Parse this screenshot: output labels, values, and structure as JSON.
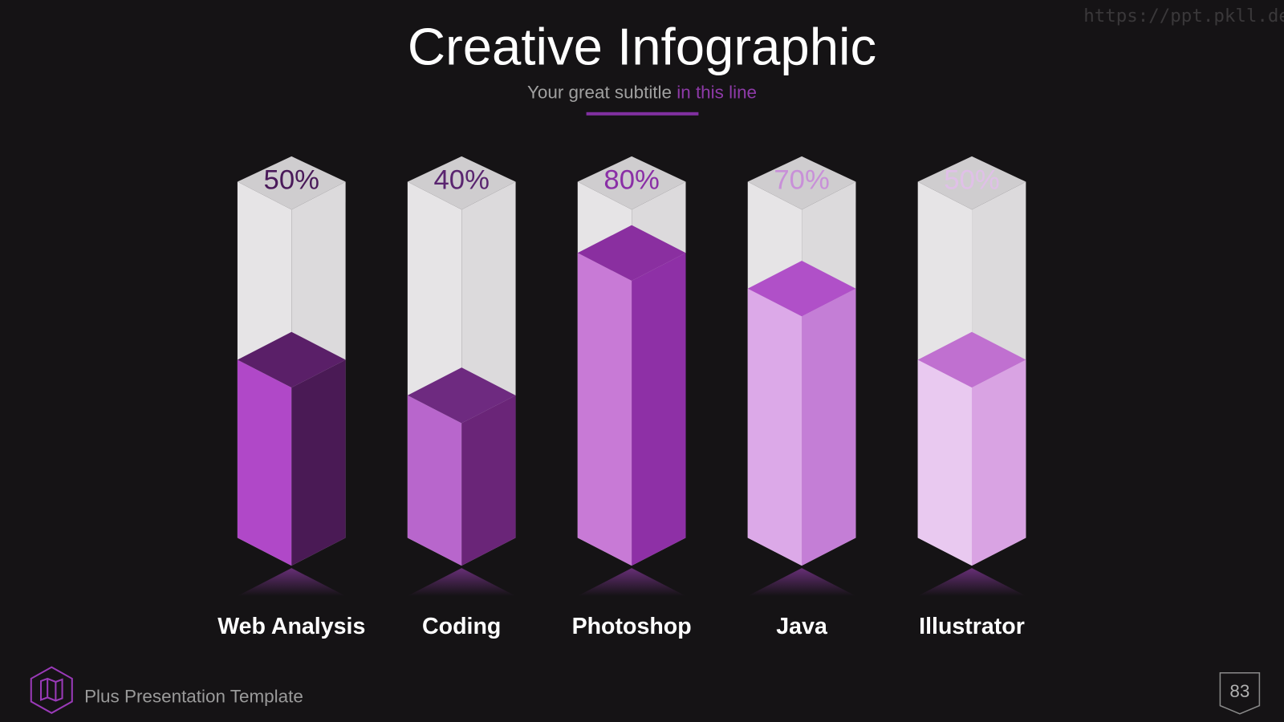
{
  "chart_data": {
    "type": "bar3d",
    "title": "Creative Infographic",
    "subtitle": "Your great subtitle",
    "subtitle_highlight": "in this line",
    "categories": [
      "Web Analysis",
      "Coding",
      "Photoshop",
      "Java",
      "Illustrator"
    ],
    "values": [
      50,
      40,
      80,
      70,
      50
    ],
    "value_labels": [
      "50%",
      "40%",
      "80%",
      "70%",
      "50%"
    ],
    "colors": [
      "#b048c8",
      "#b866cc",
      "#c87ad6",
      "#dca9e8",
      "#e9c9f0"
    ],
    "side_colors": [
      "#4a1a55",
      "#6a2578",
      "#8e30a6",
      "#c47ed6",
      "#d9a3e3"
    ],
    "top_colors": [
      "#5a1f68",
      "#6e2a80",
      "#8a2fa0",
      "#b050c8",
      "#c070d0"
    ],
    "label_colors": [
      "#4a1a5a",
      "#5a2570",
      "#8a2fa6",
      "#c890d8",
      "#e0c0e8"
    ],
    "ylim": [
      0,
      100
    ]
  },
  "footer": {
    "text": "Plus Presentation Template",
    "page": "83"
  },
  "watermark": "https://ppt.pkll.de"
}
